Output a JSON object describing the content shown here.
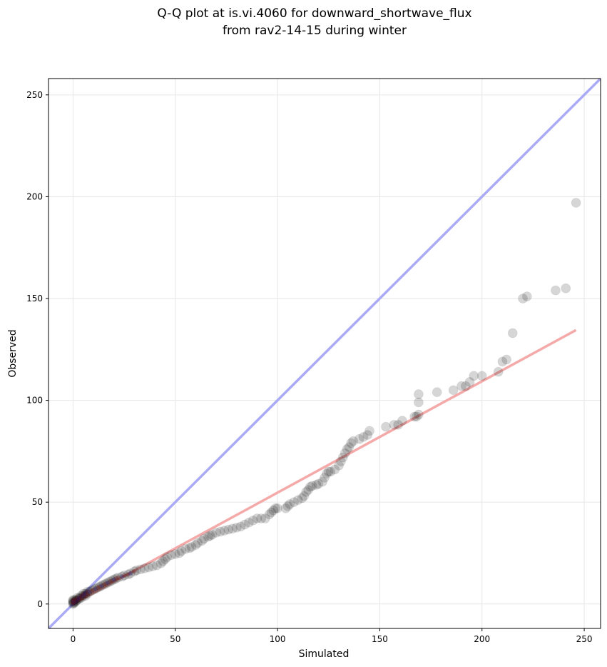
{
  "chart_data": {
    "type": "scatter",
    "title_line1": "Q-Q plot at is.vi.4060 for downward_shortwave_flux",
    "title_line2": "from rav2-14-15 during winter",
    "xlabel": "Simulated",
    "ylabel": "Observed",
    "xlim": [
      -12,
      258
    ],
    "ylim": [
      -12,
      258
    ],
    "xticks": [
      0,
      50,
      100,
      150,
      200,
      250
    ],
    "yticks": [
      0,
      50,
      100,
      150,
      200,
      250
    ],
    "grid": true,
    "reference_line": {
      "x": [
        -12,
        258
      ],
      "y": [
        -12,
        258
      ],
      "color": "#aaaaf5"
    },
    "fit_line": {
      "x": [
        0,
        246
      ],
      "y": [
        0,
        134.5
      ],
      "color": "#f5aaaa"
    },
    "points": [
      [
        0,
        0
      ],
      [
        0,
        0.5
      ],
      [
        0,
        1
      ],
      [
        0,
        1.5
      ],
      [
        0,
        2
      ],
      [
        0.5,
        0.5
      ],
      [
        1,
        1
      ],
      [
        1,
        2
      ],
      [
        1.5,
        1.5
      ],
      [
        2,
        2
      ],
      [
        2,
        3
      ],
      [
        3,
        2.5
      ],
      [
        3,
        3
      ],
      [
        4,
        3
      ],
      [
        4,
        4
      ],
      [
        5,
        4
      ],
      [
        5,
        5
      ],
      [
        6,
        4
      ],
      [
        6,
        5
      ],
      [
        7,
        5
      ],
      [
        7,
        6
      ],
      [
        8,
        6
      ],
      [
        9,
        6.5
      ],
      [
        10,
        7
      ],
      [
        11,
        7.5
      ],
      [
        12,
        8
      ],
      [
        13,
        8.5
      ],
      [
        14,
        9
      ],
      [
        15,
        9.5
      ],
      [
        16,
        10
      ],
      [
        17,
        10.5
      ],
      [
        18,
        11
      ],
      [
        19,
        11.5
      ],
      [
        20,
        12
      ],
      [
        21,
        12.5
      ],
      [
        22,
        13
      ],
      [
        24,
        13.5
      ],
      [
        25,
        14
      ],
      [
        27,
        14.5
      ],
      [
        28,
        15
      ],
      [
        30,
        16
      ],
      [
        31,
        16.5
      ],
      [
        33,
        17
      ],
      [
        35,
        17.5
      ],
      [
        37,
        18
      ],
      [
        39,
        18.5
      ],
      [
        41,
        19
      ],
      [
        43,
        20
      ],
      [
        44,
        21
      ],
      [
        45,
        22
      ],
      [
        46,
        23
      ],
      [
        48,
        24
      ],
      [
        50,
        24.5
      ],
      [
        52,
        25
      ],
      [
        53,
        26
      ],
      [
        55,
        27
      ],
      [
        57,
        27.5
      ],
      [
        58,
        28
      ],
      [
        60,
        29
      ],
      [
        61,
        30
      ],
      [
        63,
        31
      ],
      [
        64,
        32
      ],
      [
        66,
        33
      ],
      [
        67,
        33.5
      ],
      [
        68,
        34
      ],
      [
        70,
        35
      ],
      [
        72,
        35.5
      ],
      [
        74,
        36
      ],
      [
        76,
        36.5
      ],
      [
        78,
        37
      ],
      [
        80,
        37.5
      ],
      [
        82,
        38
      ],
      [
        84,
        39
      ],
      [
        86,
        40
      ],
      [
        88,
        41
      ],
      [
        90,
        42
      ],
      [
        92,
        42
      ],
      [
        94,
        42
      ],
      [
        96,
        44
      ],
      [
        97,
        45
      ],
      [
        98,
        46
      ],
      [
        99,
        47
      ],
      [
        100,
        47
      ],
      [
        104,
        47
      ],
      [
        105,
        48
      ],
      [
        106,
        49
      ],
      [
        108,
        50
      ],
      [
        110,
        51
      ],
      [
        112,
        52
      ],
      [
        113,
        53
      ],
      [
        114,
        55
      ],
      [
        115,
        56
      ],
      [
        116,
        57.5
      ],
      [
        117,
        58
      ],
      [
        119,
        58.5
      ],
      [
        120,
        59
      ],
      [
        122,
        60
      ],
      [
        123,
        62
      ],
      [
        124,
        64
      ],
      [
        125,
        65
      ],
      [
        126,
        65
      ],
      [
        128,
        66
      ],
      [
        130,
        68
      ],
      [
        131,
        70
      ],
      [
        132,
        72
      ],
      [
        133,
        74
      ],
      [
        134,
        76
      ],
      [
        135,
        77
      ],
      [
        136,
        79
      ],
      [
        137,
        80
      ],
      [
        140,
        81
      ],
      [
        142,
        82
      ],
      [
        144,
        83
      ],
      [
        145,
        85
      ],
      [
        153,
        87
      ],
      [
        157,
        88
      ],
      [
        159,
        88
      ],
      [
        161,
        90
      ],
      [
        167,
        92
      ],
      [
        168,
        92
      ],
      [
        169,
        93
      ],
      [
        169,
        99
      ],
      [
        169,
        103
      ],
      [
        178,
        104
      ],
      [
        186,
        105
      ],
      [
        190,
        107
      ],
      [
        192,
        107
      ],
      [
        194,
        109
      ],
      [
        196,
        112
      ],
      [
        200,
        112
      ],
      [
        208,
        114
      ],
      [
        210,
        119
      ],
      [
        212,
        120
      ],
      [
        215,
        133
      ],
      [
        220,
        150
      ],
      [
        222,
        151
      ],
      [
        236,
        154
      ],
      [
        241,
        155
      ],
      [
        246,
        197
      ]
    ]
  }
}
